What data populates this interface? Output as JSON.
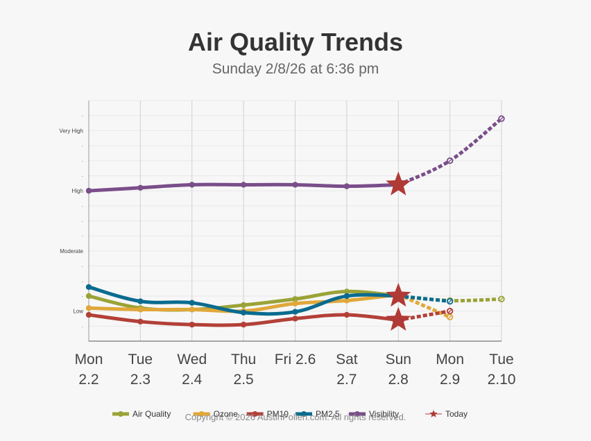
{
  "title": "Air Quality Trends",
  "subtitle": "Sunday 2/8/26 at 6:36 pm",
  "copyright": "Copyright © 2026 AustinPollen.com.  All rights reserved.",
  "chart_data": {
    "type": "line",
    "title": "Air Quality Trends",
    "subtitle": "Sunday 2/8/26 at 6:36 pm",
    "categories": [
      [
        "Mon",
        "2.2"
      ],
      [
        "Tue",
        "2.3"
      ],
      [
        "Wed",
        "2.4"
      ],
      [
        "Thu",
        "2.5"
      ],
      [
        "Fri 2.6",
        ""
      ],
      [
        "Sat",
        "2.7"
      ],
      [
        "Sun",
        "2.8"
      ],
      [
        "Mon",
        "2.9"
      ],
      [
        "Tue",
        "2.10"
      ]
    ],
    "today_index": 6,
    "ylim": [
      0,
      16
    ],
    "y_level_labels": [
      {
        "value": 2,
        "label": "Low"
      },
      {
        "value": 6,
        "label": "Moderate"
      },
      {
        "value": 10,
        "label": "High"
      },
      {
        "value": 14,
        "label": "Very High"
      }
    ],
    "y_minor_ticks": [
      1,
      3,
      4,
      5,
      7,
      8,
      9,
      11,
      12,
      13,
      15
    ],
    "y_minor_tick_label": "-",
    "legend_position": "bottom",
    "series": [
      {
        "name": "Air Quality",
        "color": "#9aa337",
        "values": [
          3.0,
          2.2,
          2.1,
          2.4,
          2.8,
          3.3,
          3.0,
          2.7,
          2.8
        ]
      },
      {
        "name": "Ozone",
        "color": "#e0a83a",
        "values": [
          2.2,
          2.1,
          2.1,
          2.0,
          2.5,
          2.7,
          3.1,
          1.6,
          null
        ]
      },
      {
        "name": "PM10",
        "color": "#b34038",
        "values": [
          1.75,
          1.3,
          1.1,
          1.1,
          1.5,
          1.75,
          1.4,
          2.0,
          null
        ]
      },
      {
        "name": "PM2.5",
        "color": "#0a6b8f",
        "values": [
          3.6,
          2.65,
          2.55,
          1.9,
          1.95,
          3.0,
          3.0,
          2.65,
          null
        ]
      },
      {
        "name": "Visibility",
        "color": "#7a4e8a",
        "values": [
          10.0,
          10.2,
          10.4,
          10.4,
          10.4,
          10.3,
          10.4,
          12.0,
          14.8
        ]
      }
    ],
    "today_legend": {
      "name": "Today",
      "color": "#b03a35"
    }
  }
}
